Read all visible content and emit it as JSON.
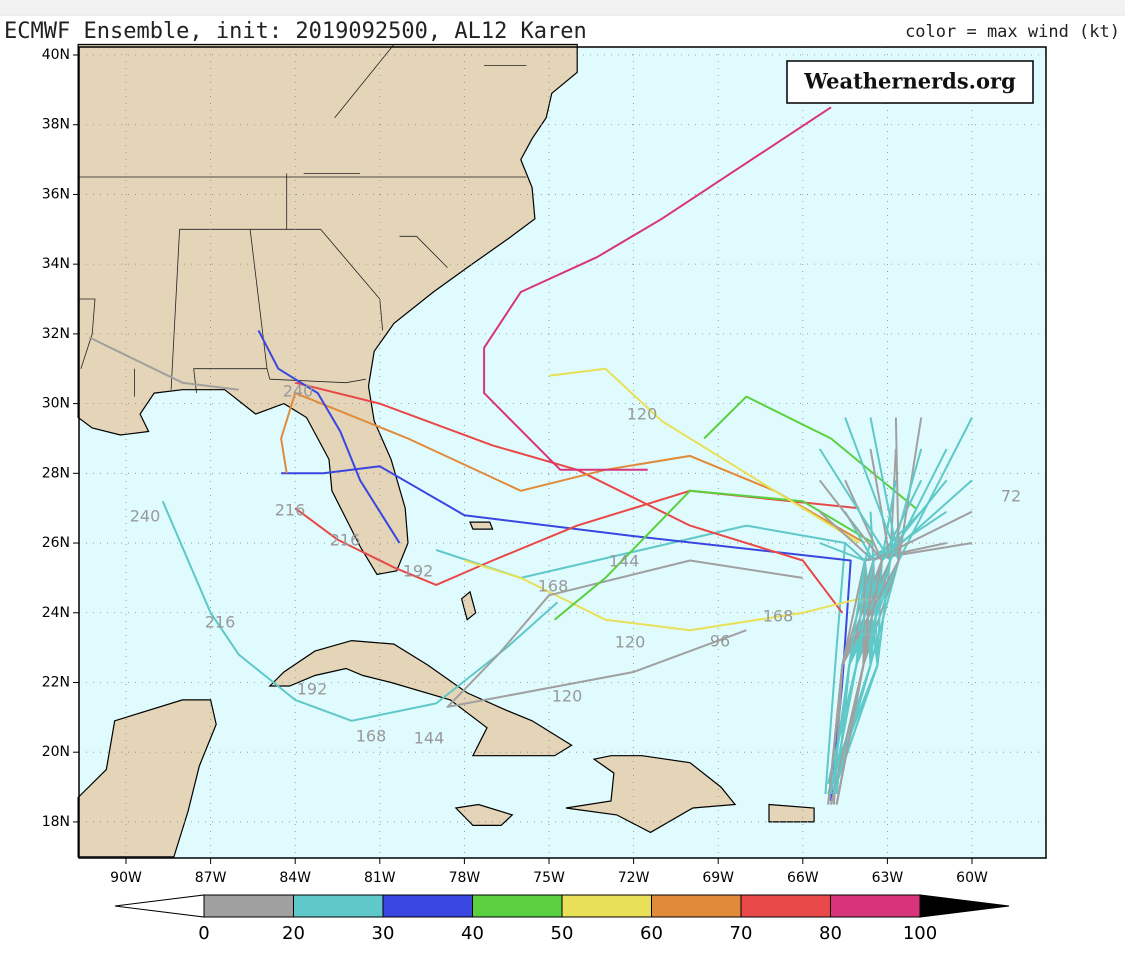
{
  "header": {
    "title": "ECMWF Ensemble, init: 2019092500, AL12 Karen",
    "note": "color = max wind (kt)"
  },
  "watermark": "Weathernerds.org",
  "axes": {
    "lat_labels": [
      "40N",
      "38N",
      "36N",
      "34N",
      "32N",
      "30N",
      "28N",
      "26N",
      "24N",
      "22N",
      "20N",
      "18N"
    ],
    "lon_labels": [
      "90W",
      "87W",
      "84W",
      "81W",
      "78W",
      "75W",
      "72W",
      "69W",
      "66W",
      "63W",
      "60W"
    ]
  },
  "colorbar": {
    "labels": [
      "0",
      "20",
      "30",
      "40",
      "50",
      "60",
      "70",
      "80",
      "100"
    ],
    "colors": [
      "#ffffff",
      "#a0a0a0",
      "#5fc8c8",
      "#3a46e0",
      "#5ad040",
      "#e8e058",
      "#e08a3a",
      "#e84848",
      "#d8347c",
      "#000000"
    ]
  },
  "track_labels": [
    "240",
    "216",
    "216",
    "216",
    "192",
    "168",
    "144",
    "120",
    "120",
    "120",
    "168",
    "144",
    "192",
    "72",
    "240",
    "96",
    "168"
  ]
}
